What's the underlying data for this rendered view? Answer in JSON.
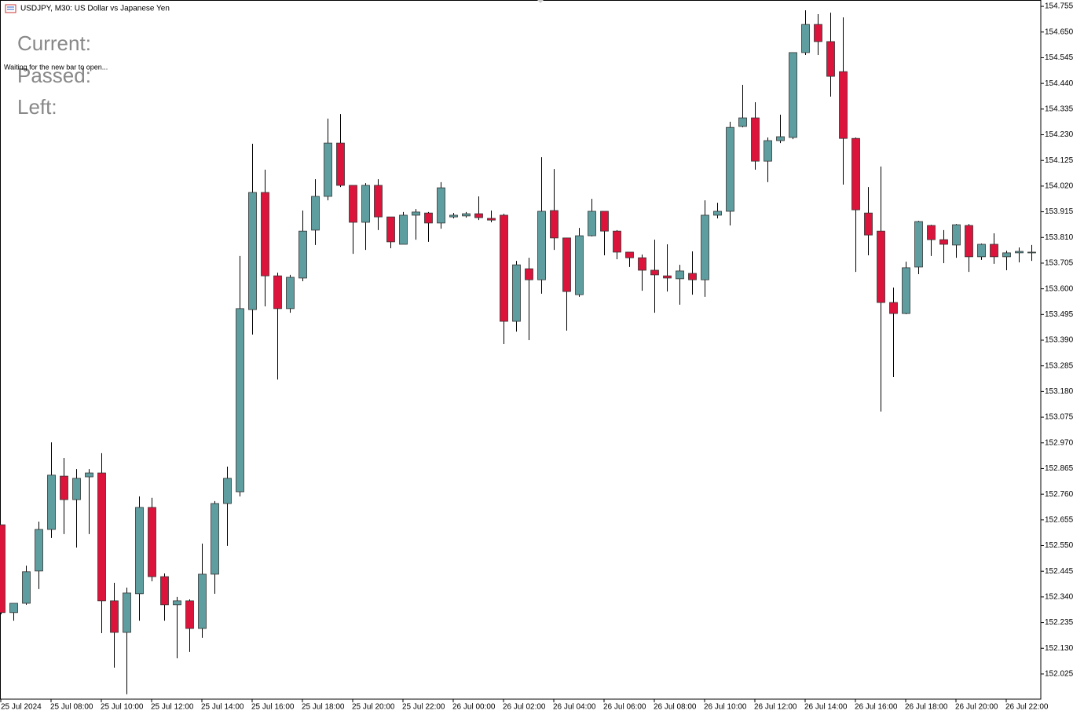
{
  "header": {
    "symbol": "USDJPY, M30:  US Dollar vs Japanese Yen",
    "status": "Waiting for the new bar to open...",
    "timer_labels": [
      "Current:",
      "Passed:",
      "Left:"
    ]
  },
  "chart_data": {
    "type": "candlestick",
    "categories": [
      "25 Jul 2024",
      null,
      null,
      null,
      "25 Jul 08:00",
      null,
      null,
      null,
      "25 Jul 10:00",
      null,
      null,
      null,
      "25 Jul 12:00",
      null,
      null,
      null,
      "25 Jul 14:00",
      null,
      null,
      null,
      "25 Jul 16:00",
      null,
      null,
      null,
      "25 Jul 18:00",
      null,
      null,
      null,
      "25 Jul 20:00",
      null,
      null,
      null,
      "25 Jul 22:00",
      null,
      null,
      null,
      "26 Jul 00:00",
      null,
      null,
      null,
      "26 Jul 02:00",
      null,
      null,
      null,
      "26 Jul 04:00",
      null,
      null,
      null,
      "26 Jul 06:00",
      null,
      null,
      null,
      "26 Jul 08:00",
      null,
      null,
      null,
      "26 Jul 10:00",
      null,
      null,
      null,
      "26 Jul 12:00",
      null,
      null,
      null,
      "26 Jul 14:00",
      null,
      null,
      null,
      "26 Jul 16:00",
      null,
      null,
      null,
      "26 Jul 18:00",
      null,
      null,
      null,
      "26 Jul 20:00",
      null,
      null,
      null,
      "26 Jul 22:00",
      null,
      null
    ],
    "open": [
      152.635,
      152.276,
      152.314,
      152.446,
      152.616,
      152.834,
      152.738,
      152.831,
      152.847,
      152.324,
      152.195,
      152.353,
      152.706,
      152.423,
      152.308,
      152.324,
      152.211,
      152.433,
      152.722,
      152.77,
      153.515,
      153.994,
      153.653,
      153.519,
      153.644,
      153.84,
      153.978,
      154.196,
      154.023,
      153.872,
      154.023,
      153.894,
      153.782,
      153.901,
      153.91,
      153.869,
      153.894,
      153.898,
      153.907,
      153.888,
      153.901,
      153.467,
      153.682,
      153.637,
      153.92,
      153.808,
      153.576,
      153.817,
      153.917,
      153.836,
      153.75,
      153.727,
      153.676,
      153.653,
      153.641,
      153.663,
      153.637,
      153.901,
      153.917,
      154.264,
      154.299,
      154.122,
      154.206,
      154.219,
      154.566,
      154.681,
      154.611,
      154.488,
      154.215,
      153.91,
      153.836,
      153.544,
      153.499,
      153.689,
      153.859,
      153.801,
      153.779,
      153.859,
      153.731,
      153.782,
      153.731,
      153.747,
      153.747
    ],
    "high": [
      152.635,
      152.314,
      152.468,
      152.648,
      152.972,
      152.908,
      152.863,
      152.863,
      152.928,
      152.398,
      152.378,
      152.751,
      152.745,
      152.436,
      152.34,
      152.33,
      152.558,
      152.732,
      152.873,
      153.734,
      154.193,
      154.087,
      153.666,
      153.657,
      153.92,
      154.048,
      154.296,
      154.315,
      154.023,
      154.032,
      154.048,
      153.894,
      153.914,
      153.926,
      153.914,
      154.036,
      153.91,
      153.914,
      153.978,
      153.92,
      153.907,
      153.714,
      153.727,
      154.138,
      154.09,
      153.808,
      153.849,
      153.968,
      153.917,
      153.84,
      153.75,
      153.74,
      153.801,
      153.782,
      153.698,
      153.753,
      153.962,
      153.952,
      154.283,
      154.434,
      154.363,
      154.219,
      154.312,
      154.566,
      154.739,
      154.723,
      154.729,
      154.71,
      154.219,
      154.016,
      154.1,
      153.605,
      153.711,
      153.878,
      153.862,
      153.84,
      153.865,
      153.865,
      153.785,
      153.827,
      153.756,
      153.769,
      153.779
    ],
    "low": [
      152.269,
      152.243,
      152.308,
      152.372,
      152.581,
      152.597,
      152.542,
      152.597,
      152.192,
      152.051,
      151.942,
      152.243,
      152.404,
      152.243,
      152.089,
      152.115,
      152.173,
      152.353,
      152.549,
      152.751,
      153.413,
      153.528,
      153.229,
      153.502,
      153.631,
      153.779,
      153.962,
      154.016,
      153.743,
      153.759,
      153.84,
      153.766,
      153.782,
      153.801,
      153.792,
      153.846,
      153.888,
      153.891,
      153.881,
      153.872,
      153.374,
      153.425,
      153.39,
      153.58,
      153.759,
      153.429,
      153.567,
      153.814,
      153.737,
      153.721,
      153.689,
      153.592,
      153.502,
      153.589,
      153.535,
      153.576,
      153.567,
      153.888,
      153.859,
      154.26,
      154.087,
      154.036,
      154.196,
      154.212,
      154.556,
      154.556,
      154.386,
      154.026,
      153.669,
      153.737,
      153.098,
      153.239,
      153.496,
      153.66,
      153.734,
      153.705,
      153.727,
      153.669,
      153.718,
      153.702,
      153.676,
      153.708,
      153.714
    ],
    "close": [
      152.276,
      152.314,
      152.443,
      152.616,
      152.838,
      152.738,
      152.825,
      152.847,
      152.324,
      152.195,
      152.356,
      152.706,
      152.423,
      152.308,
      152.324,
      152.211,
      152.433,
      152.722,
      152.825,
      153.519,
      153.994,
      153.653,
      153.519,
      153.647,
      153.836,
      153.978,
      154.196,
      154.023,
      153.872,
      154.023,
      153.894,
      153.792,
      153.901,
      153.914,
      153.869,
      154.013,
      153.901,
      153.907,
      153.891,
      153.881,
      153.467,
      153.698,
      153.637,
      153.917,
      153.808,
      153.589,
      153.817,
      153.917,
      153.836,
      153.75,
      153.727,
      153.676,
      153.657,
      153.644,
      153.673,
      153.637,
      153.901,
      153.917,
      154.26,
      154.299,
      154.122,
      154.206,
      154.222,
      154.566,
      154.681,
      154.611,
      154.469,
      154.215,
      153.923,
      153.82,
      153.544,
      153.499,
      153.686,
      153.875,
      153.801,
      153.782,
      153.862,
      153.731,
      153.782,
      153.731,
      153.747,
      153.753,
      153.75
    ],
    "up_color": "#5f9ea0",
    "down_color": "#dc143c",
    "ylim": [
      151.922,
      154.781
    ],
    "yticks": [
      154.755,
      {
        "value": 154.65,
        "label": "154.650"
      },
      154.545,
      {
        "value": 154.44,
        "label": "154.440"
      },
      154.335,
      {
        "value": 154.23,
        "label": "154.230"
      },
      154.125,
      {
        "value": 154.02,
        "label": "154.020"
      },
      153.915,
      {
        "value": 153.81,
        "label": "153.810"
      },
      153.705,
      {
        "value": 153.6,
        "label": "153.600"
      },
      153.495,
      {
        "value": 153.39,
        "label": "153.390"
      },
      153.285,
      {
        "value": 153.18,
        "label": "153.180"
      },
      153.075,
      {
        "value": 152.97,
        "label": "152.970"
      },
      152.865,
      {
        "value": 152.76,
        "label": "152.760"
      },
      152.655,
      {
        "value": 152.55,
        "label": "152.550"
      },
      152.445,
      {
        "value": 152.34,
        "label": "152.340"
      },
      152.235,
      {
        "value": 152.13,
        "label": "152.130"
      },
      152.025
    ]
  }
}
